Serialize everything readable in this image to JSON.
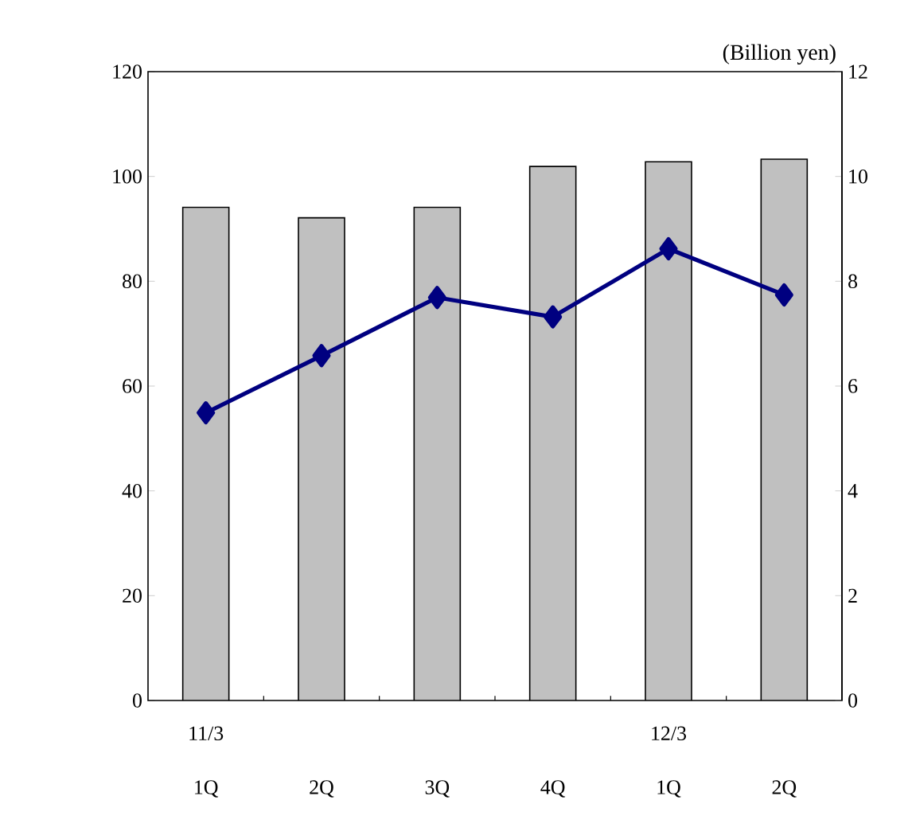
{
  "chart_data": {
    "type": "bar",
    "y2label": "(Billion yen)",
    "categories": [
      "11/3 1Q",
      "2Q",
      "3Q",
      "4Q",
      "12/3 1Q",
      "2Q"
    ],
    "series": [
      {
        "color": "#c0c0c0",
        "values": [
          94.1,
          92.1,
          94.1,
          101.9,
          102.8,
          103.3
        ]
      },
      {
        "type": "line",
        "axis": "y2",
        "color": "#000080",
        "values": [
          5.49,
          6.58,
          7.69,
          7.32,
          8.62,
          7.74
        ]
      }
    ],
    "ylim": [
      0,
      120
    ],
    "yticks": [
      0,
      20,
      40,
      60,
      80,
      100,
      120
    ],
    "y2lim": [
      0,
      12
    ],
    "y2ticks": [
      0,
      2,
      4,
      6,
      8,
      10,
      12
    ],
    "marker": "diamond",
    "line_style": "solid"
  }
}
